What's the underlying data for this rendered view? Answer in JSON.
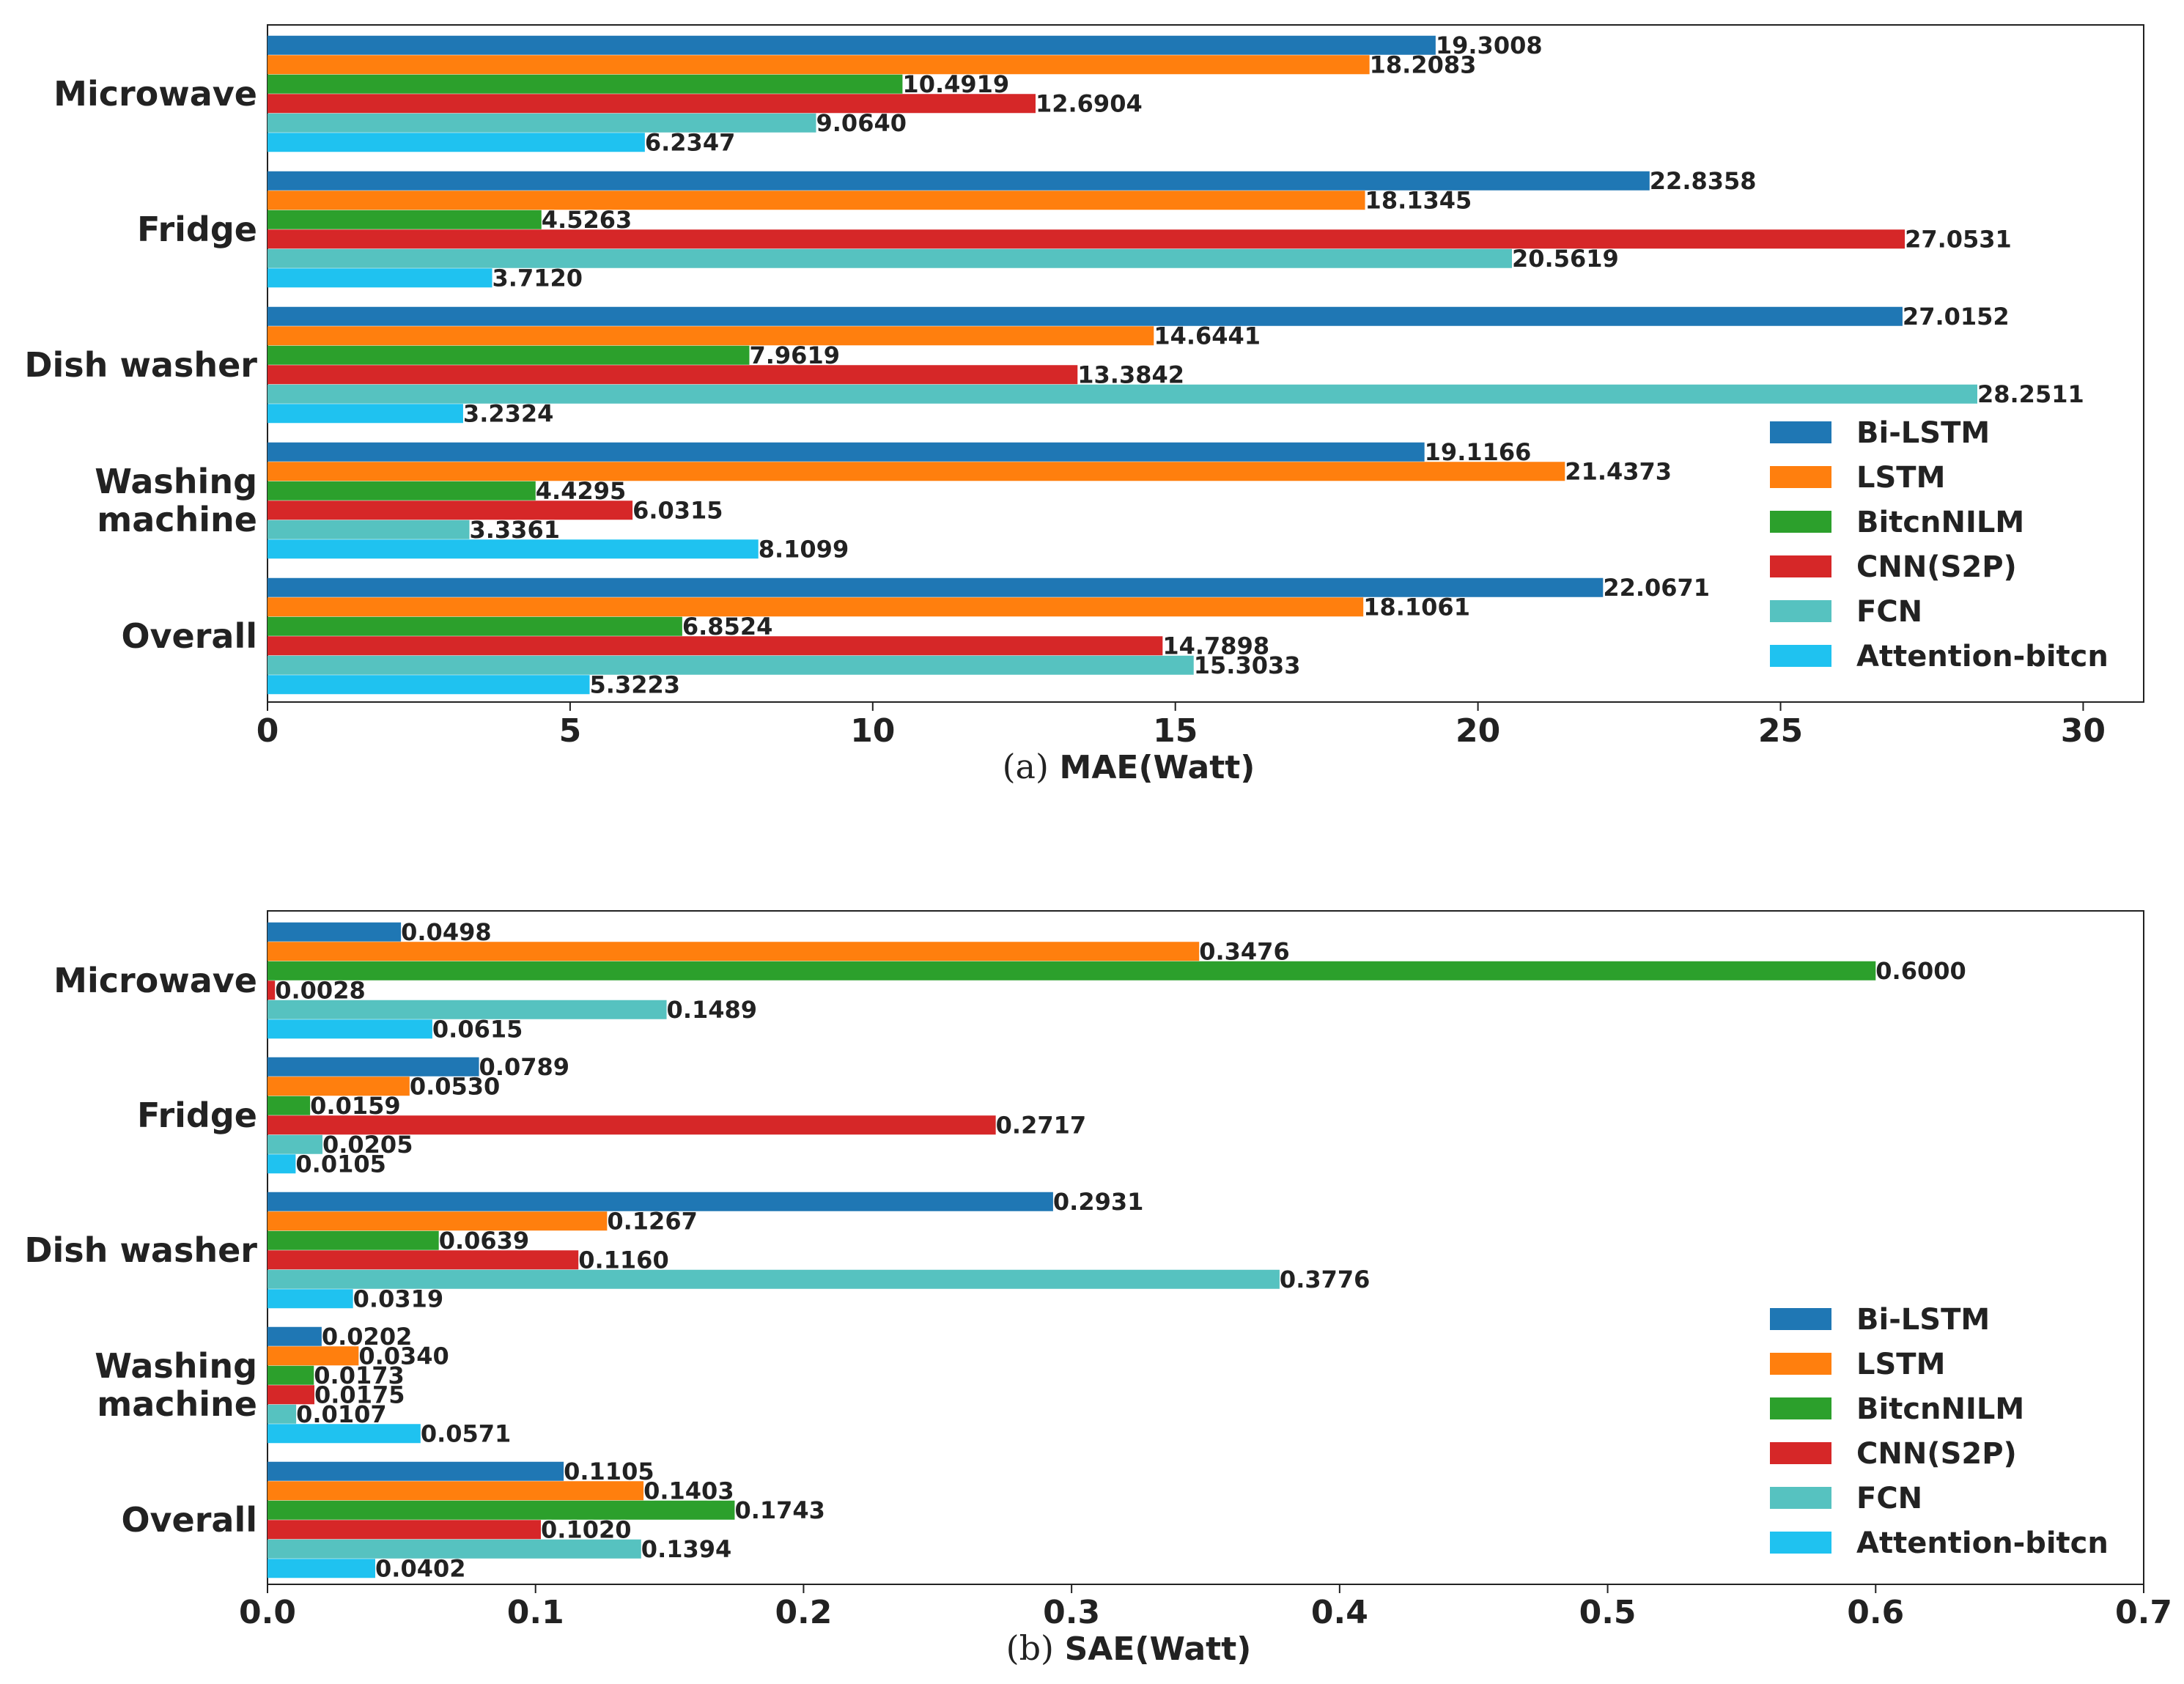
{
  "colors": {
    "Bi-LSTM": "#1f77b4",
    "LSTM": "#ff7f0e",
    "BitcnNILM": "#2ca02c",
    "CNN(S2P)": "#d62728",
    "FCN": "#56c2c0",
    "Attention-bitcn": "#1fc2f0"
  },
  "chart_data": [
    {
      "type": "bar",
      "orientation": "horizontal",
      "caption_prefix": "(a)",
      "caption_title": "MAE(Watt)",
      "categories": [
        "Microwave",
        "Fridge",
        "Dish washer",
        "Washing machine",
        "Overall"
      ],
      "category_lines": [
        [
          "Microwave"
        ],
        [
          "Fridge"
        ],
        [
          "Dish washer"
        ],
        [
          "Washing",
          "machine"
        ],
        [
          "Overall"
        ]
      ],
      "xlim": [
        0,
        31
      ],
      "ticks": [
        0,
        5,
        10,
        15,
        20,
        25,
        30
      ],
      "tick_labels": [
        "0",
        "5",
        "10",
        "15",
        "20",
        "25",
        "30"
      ],
      "legend_position": "lower-right",
      "series": [
        {
          "name": "Bi-LSTM",
          "values": [
            19.3008,
            22.8358,
            27.0152,
            19.1166,
            22.0671
          ],
          "labels": [
            "19.3008",
            "22.8358",
            "27.0152",
            "19.1166",
            "22.0671"
          ]
        },
        {
          "name": "LSTM",
          "values": [
            18.2083,
            18.1345,
            14.6441,
            21.4373,
            18.1061
          ],
          "labels": [
            "18.2083",
            "18.1345",
            "14.6441",
            "21.4373",
            "18.1061"
          ]
        },
        {
          "name": "BitcnNILM",
          "values": [
            10.4919,
            4.5263,
            7.9619,
            4.4295,
            6.8524
          ],
          "labels": [
            "10.4919",
            "4.5263",
            "7.9619",
            "4.4295",
            "6.8524"
          ]
        },
        {
          "name": "CNN(S2P)",
          "values": [
            12.6904,
            27.0531,
            13.3842,
            6.0315,
            14.7898
          ],
          "labels": [
            "12.6904",
            "27.0531",
            "13.3842",
            "6.0315",
            "14.7898"
          ]
        },
        {
          "name": "FCN",
          "values": [
            9.064,
            20.5619,
            28.2511,
            3.3361,
            15.3033
          ],
          "labels": [
            "9.0640",
            "20.5619",
            "28.2511",
            "3.3361",
            "15.3033"
          ]
        },
        {
          "name": "Attention-bitcn",
          "values": [
            6.2347,
            3.712,
            3.2324,
            8.1099,
            5.3223
          ],
          "labels": [
            "6.2347",
            "3.7120",
            "3.2324",
            "8.1099",
            "5.3223"
          ]
        }
      ]
    },
    {
      "type": "bar",
      "orientation": "horizontal",
      "caption_prefix": "(b)",
      "caption_title": "SAE(Watt)",
      "categories": [
        "Microwave",
        "Fridge",
        "Dish washer",
        "Washing machine",
        "Overall"
      ],
      "category_lines": [
        [
          "Microwave"
        ],
        [
          "Fridge"
        ],
        [
          "Dish washer"
        ],
        [
          "Washing",
          "machine"
        ],
        [
          "Overall"
        ]
      ],
      "xlim": [
        0,
        0.7
      ],
      "ticks": [
        0,
        0.1,
        0.2,
        0.3,
        0.4,
        0.5,
        0.6,
        0.7
      ],
      "tick_labels": [
        "0.0",
        "0.1",
        "0.2",
        "0.3",
        "0.4",
        "0.5",
        "0.6",
        "0.7"
      ],
      "legend_position": "lower-right",
      "series": [
        {
          "name": "Bi-LSTM",
          "values": [
            0.0498,
            0.0789,
            0.2931,
            0.0202,
            0.1105
          ],
          "labels": [
            "0.0498",
            "0.0789",
            "0.2931",
            "0.0202",
            "0.1105"
          ]
        },
        {
          "name": "LSTM",
          "values": [
            0.3476,
            0.053,
            0.1267,
            0.034,
            0.1403
          ],
          "labels": [
            "0.3476",
            "0.0530",
            "0.1267",
            "0.0340",
            "0.1403"
          ]
        },
        {
          "name": "BitcnNILM",
          "values": [
            0.6,
            0.0159,
            0.0639,
            0.0173,
            0.1743
          ],
          "labels": [
            "0.6000",
            "0.0159",
            "0.0639",
            "0.0173",
            "0.1743"
          ]
        },
        {
          "name": "CNN(S2P)",
          "values": [
            0.0028,
            0.2717,
            0.116,
            0.0175,
            0.102
          ],
          "labels": [
            "0.0028",
            "0.2717",
            "0.1160",
            "0.0175",
            "0.1020"
          ]
        },
        {
          "name": "FCN",
          "values": [
            0.1489,
            0.0205,
            0.3776,
            0.0107,
            0.1394
          ],
          "labels": [
            "0.1489",
            "0.0205",
            "0.3776",
            "0.0107",
            "0.1394"
          ]
        },
        {
          "name": "Attention-bitcn",
          "values": [
            0.0615,
            0.0105,
            0.0319,
            0.0571,
            0.0402
          ],
          "labels": [
            "0.0615",
            "0.0105",
            "0.0319",
            "0.0571",
            "0.0402"
          ]
        }
      ]
    }
  ]
}
